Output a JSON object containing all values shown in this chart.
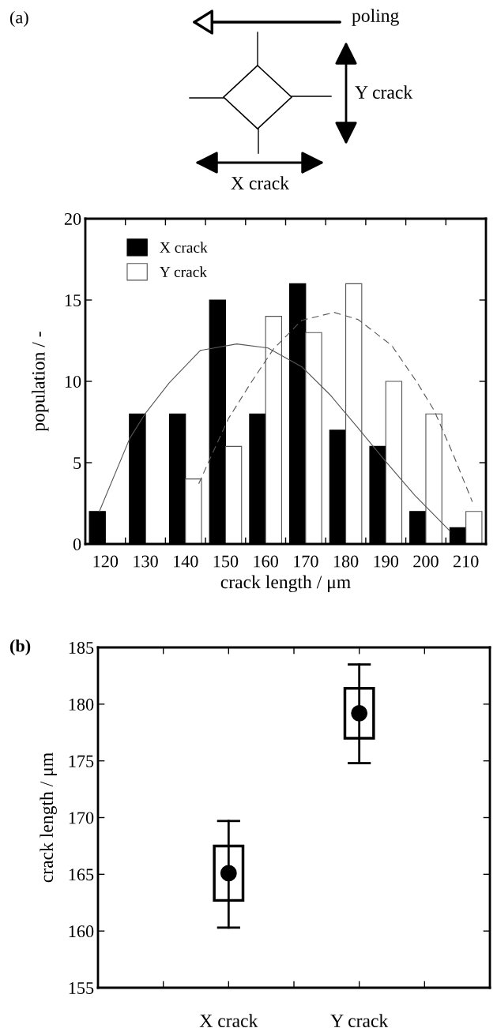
{
  "chart_data": [
    {
      "type": "other",
      "title": "(a)",
      "annotations": [
        "poling",
        "Y crack",
        "X crack"
      ]
    },
    {
      "type": "bar",
      "xlabel": "crack length / μm",
      "ylabel": "population / -",
      "x": [
        120,
        130,
        140,
        150,
        160,
        170,
        180,
        190,
        200,
        210
      ],
      "series": [
        {
          "name": "X crack",
          "type": "bar",
          "color": "#000000",
          "values": [
            2,
            8,
            8,
            15,
            8,
            16,
            7,
            6,
            2,
            1
          ]
        },
        {
          "name": "Y crack",
          "type": "bar",
          "color": "#ffffff",
          "values": [
            null,
            null,
            4,
            6,
            14,
            13,
            16,
            10,
            8,
            2
          ]
        },
        {
          "type": "line",
          "color": "#555555",
          "line_style": "solid",
          "x": [
            118.5,
            126.1,
            129.9,
            135.9,
            143.7,
            152.8,
            160.6,
            169,
            176,
            183,
            190,
            197.2,
            206
          ],
          "values": [
            2.0,
            6.5,
            8.0,
            9.9,
            11.9,
            12.3,
            12.05,
            10.9,
            9.2,
            7.15,
            5.07,
            3.0,
            0.8
          ]
        },
        {
          "type": "line",
          "color": "#555555",
          "line_style": "dashed",
          "x": [
            143.3,
            145.8,
            150.7,
            156.3,
            162,
            169,
            177.1,
            183.1,
            191.5,
            197.9,
            202.1,
            207,
            211.6
          ],
          "values": [
            3.7,
            5.07,
            7.7,
            9.9,
            12.0,
            13.75,
            14.24,
            13.8,
            12.2,
            9.9,
            8.2,
            5.4,
            2.6
          ]
        }
      ],
      "xlim": [
        115,
        215
      ],
      "xticks": [
        120,
        130,
        140,
        150,
        160,
        170,
        180,
        190,
        200,
        210,
        {
          "value": 125,
          "label": null
        },
        {
          "value": 135,
          "label": null
        },
        {
          "value": 145,
          "label": null
        },
        {
          "value": 155,
          "label": null
        },
        {
          "value": 165,
          "label": null
        },
        {
          "value": 175,
          "label": null
        },
        {
          "value": 185,
          "label": null
        },
        {
          "value": 195,
          "label": null
        },
        {
          "value": 205,
          "label": null
        }
      ],
      "ylim": [
        0,
        20
      ],
      "yticks": [
        0,
        5,
        10,
        15,
        20
      ],
      "legend": "top left"
    },
    {
      "type": "box",
      "title": "(b)",
      "ylabel": "crack length / μm",
      "categories": [
        "X crack",
        "Y crack"
      ],
      "boxes": [
        {
          "low": 160.3,
          "q1": 162.7,
          "q3": 167.5,
          "high": 169.7,
          "mean": 165.1
        },
        {
          "low": 174.8,
          "q1": 177.0,
          "q3": 181.4,
          "high": 183.5,
          "mean": 179.2
        }
      ],
      "ylim": [
        155,
        185
      ],
      "yticks": [
        155,
        160,
        165,
        170,
        175,
        180,
        185
      ]
    }
  ]
}
